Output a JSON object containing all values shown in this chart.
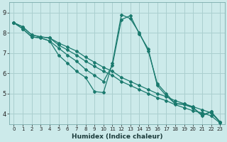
{
  "xlabel": "Humidex (Indice chaleur)",
  "xlim": [
    -0.5,
    23.5
  ],
  "ylim": [
    3.5,
    9.5
  ],
  "xticks": [
    0,
    1,
    2,
    3,
    4,
    5,
    6,
    7,
    8,
    9,
    10,
    11,
    12,
    13,
    14,
    15,
    16,
    17,
    18,
    19,
    20,
    21,
    22,
    23
  ],
  "yticks": [
    4,
    5,
    6,
    7,
    8,
    9
  ],
  "bg_color": "#cceaea",
  "grid_color": "#aacfcf",
  "line_color": "#1a7a6e",
  "lines": [
    {
      "x": [
        0,
        1,
        2,
        3,
        4,
        5,
        6,
        7,
        8,
        9,
        10,
        11,
        12,
        13,
        14,
        15,
        16,
        17,
        18,
        19,
        20,
        21,
        22,
        23
      ],
      "y": [
        8.5,
        8.3,
        7.9,
        7.8,
        7.75,
        7.5,
        7.3,
        7.1,
        6.8,
        6.55,
        6.3,
        6.1,
        5.8,
        5.6,
        5.4,
        5.2,
        5.0,
        4.85,
        4.65,
        4.5,
        4.35,
        4.2,
        4.05,
        3.6
      ]
    },
    {
      "x": [
        0,
        1,
        2,
        3,
        4,
        5,
        6,
        7,
        8,
        9,
        10,
        11,
        12,
        13,
        14,
        15,
        16,
        17,
        18,
        19,
        20,
        21,
        22,
        23
      ],
      "y": [
        8.5,
        8.3,
        7.9,
        7.8,
        7.75,
        7.4,
        7.15,
        6.9,
        6.6,
        6.35,
        6.1,
        5.9,
        5.6,
        5.4,
        5.2,
        5.0,
        4.8,
        4.65,
        4.45,
        4.3,
        4.15,
        4.05,
        3.9,
        3.55
      ]
    },
    {
      "x": [
        0,
        1,
        2,
        3,
        4,
        5,
        6,
        7,
        8,
        9,
        10,
        11,
        12,
        13,
        14,
        15,
        16,
        17,
        18,
        19,
        20,
        21,
        22,
        23
      ],
      "y": [
        8.5,
        8.2,
        7.8,
        7.75,
        7.6,
        7.25,
        6.9,
        6.6,
        6.2,
        5.9,
        5.6,
        6.4,
        8.65,
        8.85,
        7.95,
        7.2,
        5.4,
        4.9,
        4.5,
        4.5,
        4.3,
        3.95,
        4.1,
        3.6
      ]
    },
    {
      "x": [
        0,
        1,
        2,
        3,
        4,
        5,
        6,
        7,
        8,
        9,
        10,
        11,
        12,
        13,
        14,
        15,
        16,
        17,
        18,
        19,
        20,
        21,
        22,
        23
      ],
      "y": [
        8.5,
        8.2,
        7.8,
        7.75,
        7.6,
        6.9,
        6.5,
        6.1,
        5.8,
        5.1,
        5.05,
        6.5,
        8.9,
        8.7,
        8.0,
        7.1,
        5.5,
        5.0,
        4.5,
        4.45,
        4.3,
        3.9,
        4.1,
        3.6
      ]
    }
  ]
}
